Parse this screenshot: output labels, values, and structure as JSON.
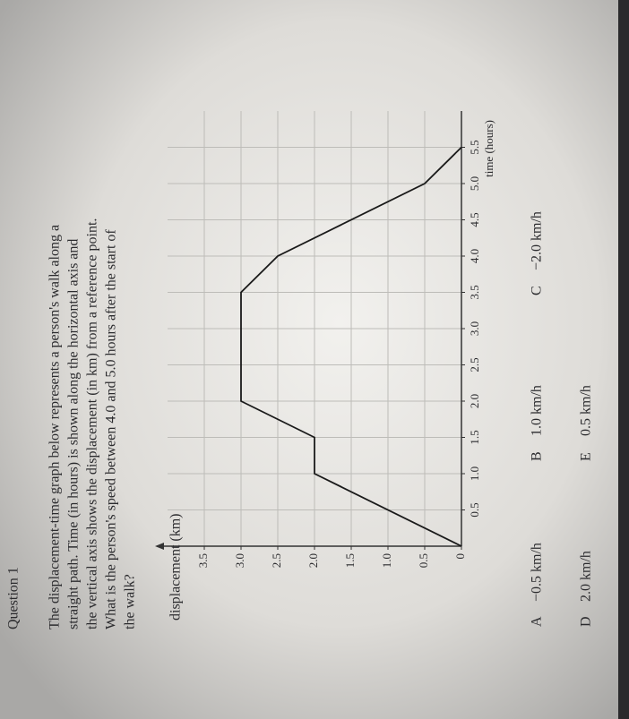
{
  "header": {
    "title": "Question 1"
  },
  "question": {
    "lines": [
      "The displacement-time graph below represents a person's walk along a",
      "straight path. Time (in hours) is shown along the horizontal axis and",
      "the vertical axis shows the displacement (in km) from a reference point.",
      "What is the person's speed between 4.0 and 5.0 hours after the start of",
      "the walk?"
    ]
  },
  "chart_data": {
    "type": "line",
    "ylabel": "displacement (km)",
    "xlabel": "time (hours)",
    "x": [
      0,
      1,
      1.5,
      2,
      3.5,
      4,
      5,
      5.5
    ],
    "values": [
      0,
      2,
      2,
      3,
      3,
      2.5,
      0.5,
      0
    ],
    "color": "#1a1a1a",
    "xlim": [
      0,
      6
    ],
    "ylim": [
      0,
      4
    ],
    "xticks": [
      0.5,
      {
        "value": 1,
        "label": "1.0"
      },
      1.5,
      {
        "value": 2,
        "label": "2.0"
      },
      2.5,
      {
        "value": 3,
        "label": "3.0"
      },
      3.5,
      {
        "value": 4,
        "label": "4.0"
      },
      4.5,
      {
        "value": 5,
        "label": "5.0"
      },
      5.5
    ],
    "yticks": [
      0,
      0.5,
      {
        "value": 1,
        "label": "1.0"
      },
      1.5,
      {
        "value": 2,
        "label": "2.0"
      },
      2.5,
      {
        "value": 3,
        "label": "3.0"
      },
      3.5
    ],
    "grid": true
  },
  "options": [
    {
      "letter": "A",
      "text": "−0.5 km/h"
    },
    {
      "letter": "B",
      "text": "1.0 km/h"
    },
    {
      "letter": "C",
      "text": "−2.0 km/h"
    },
    {
      "letter": "D",
      "text": "2.0 km/h"
    },
    {
      "letter": "E",
      "text": "0.5 km/h"
    }
  ]
}
